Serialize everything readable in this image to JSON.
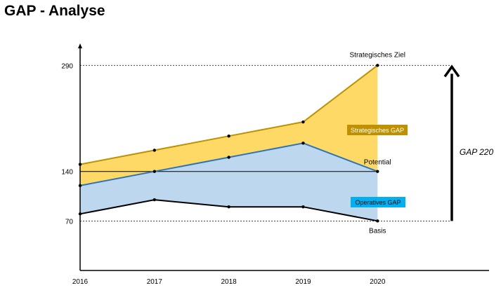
{
  "page": {
    "title": "GAP - Analyse"
  },
  "chart_data": {
    "type": "area",
    "x": [
      2016,
      2017,
      2018,
      2019,
      2020
    ],
    "series": [
      {
        "name": "Strategisches Ziel",
        "values": [
          150,
          170,
          190,
          210,
          290
        ]
      },
      {
        "name": "Potential",
        "values": [
          120,
          140,
          160,
          180,
          140
        ]
      },
      {
        "name": "Basis",
        "values": [
          80,
          100,
          90,
          90,
          70
        ]
      }
    ],
    "yticks": [
      70,
      140,
      290
    ],
    "ylim": [
      0,
      320
    ],
    "xlim": [
      2016,
      2021.5
    ],
    "reference_line": 140,
    "labels": {
      "strategic_target": "Strategisches Ziel",
      "potential": "Potential",
      "basis": "Basis",
      "strategic_gap": "Strategisches GAP",
      "operative_gap": "Operatives GAP",
      "total_gap": "GAP 220"
    },
    "colors": {
      "strategic_fill": "#FFD966",
      "strategic_line": "#BF9000",
      "operative_fill": "#BDD7EE",
      "operative_line": "#2E75B6",
      "basis_line": "#000000",
      "strategic_box": "#BF9000",
      "operative_box": "#00B0F0"
    }
  }
}
